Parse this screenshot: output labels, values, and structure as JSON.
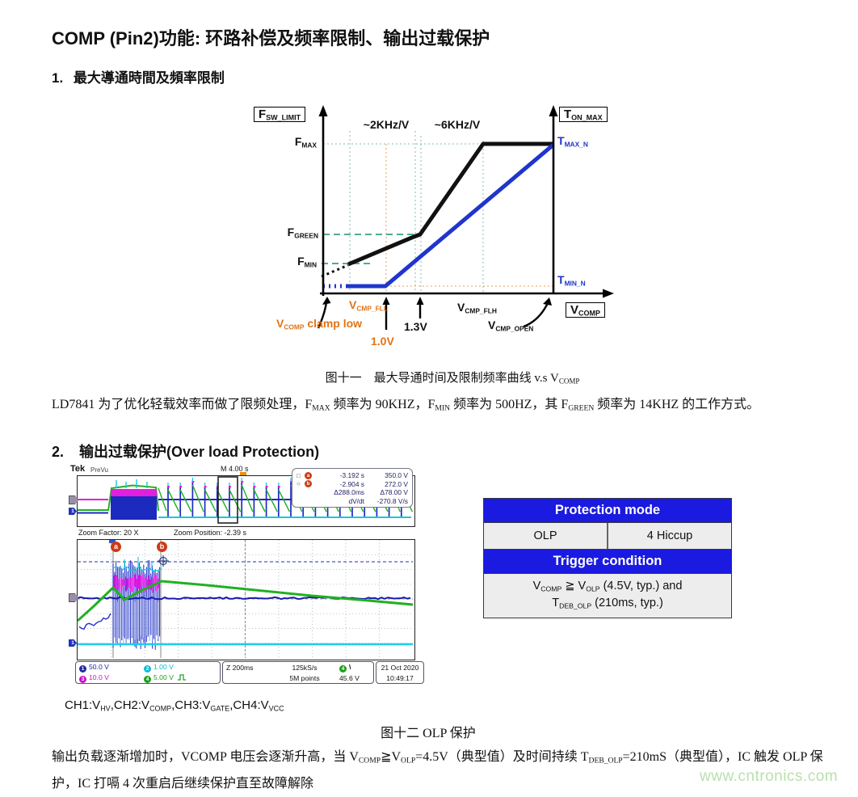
{
  "colors": {
    "accent_blue": "#1f35cc",
    "accent_orange": "#e07415",
    "teal": "#3a9f86",
    "table_blue": "#1a1ae0",
    "ch1": "#222a9c",
    "ch2": "#11b8d4",
    "ch3": "#cc10cc",
    "ch4": "#1da01d",
    "cursor_badge": "#cc3b16",
    "watermark": "#b9e0ad"
  },
  "page": {
    "title": "COMP (Pin2)功能: 环路补偿及频率限制、输出过载保护",
    "watermark": "www.cntronics.com"
  },
  "section1": {
    "num": "1.",
    "heading": "最大導通時間及頻率限制",
    "caption": [
      {
        "t": "图十一　最大导通时间及限制频率曲线 v.s V"
      },
      {
        "s": "COMP"
      }
    ],
    "body": [
      {
        "t": "LD7841 为了优化轻载效率而做了限频处理，F"
      },
      {
        "s": "MAX"
      },
      {
        "t": " 频率为 90KHZ，F"
      },
      {
        "s": "MIN"
      },
      {
        "t": " 频率为 500HZ，其 F"
      },
      {
        "s": "GREEN"
      },
      {
        "t": " 频率为 14KHZ 的工作方式。"
      }
    ]
  },
  "chart": {
    "fsw_limit": [
      {
        "t": "F"
      },
      {
        "s": "SW_LIMIT"
      }
    ],
    "ton_max": [
      {
        "t": "T"
      },
      {
        "s": "ON_MAX"
      }
    ],
    "fmax": [
      {
        "t": "F"
      },
      {
        "s": "MAX"
      }
    ],
    "fgreen": [
      {
        "t": "F"
      },
      {
        "s": "GREEN"
      }
    ],
    "fmin": [
      {
        "t": "F"
      },
      {
        "s": "MIN"
      }
    ],
    "tmax_n": [
      {
        "t": "T"
      },
      {
        "s": "MAX_N"
      }
    ],
    "tmin_n": [
      {
        "t": "T"
      },
      {
        "s": "MIN_N"
      }
    ],
    "slope_left": "~2KHz/V",
    "slope_right": "~6KHz/V",
    "vcmp_fll": [
      {
        "t": "V"
      },
      {
        "s": "CMP_FLL"
      }
    ],
    "vcmp_flh": [
      {
        "t": "V"
      },
      {
        "s": "CMP_FLH"
      }
    ],
    "vcmp_open": [
      {
        "t": "V"
      },
      {
        "s": "CMP_OPEN"
      }
    ],
    "vcomp_axis": [
      {
        "t": "V"
      },
      {
        "s": "COMP"
      }
    ],
    "clamp_low": [
      {
        "t": "V"
      },
      {
        "s": "COMP"
      },
      {
        "t": " clamp low"
      }
    ],
    "v_1_0": "1.0V",
    "v_1_3": "1.3V"
  },
  "section2": {
    "num": "2.",
    "heading": "输出过载保护(Over load Protection)",
    "ch_caption": [
      {
        "t": "CH1:V"
      },
      {
        "s": "HV"
      },
      {
        "t": ",CH2:V"
      },
      {
        "s": "COMP"
      },
      {
        "t": ",CH3:V"
      },
      {
        "s": "GATE"
      },
      {
        "t": ",CH4:V"
      },
      {
        "s": "VCC"
      }
    ],
    "fig_caption": "图十二 OLP 保护",
    "body": [
      {
        "t": "输出负载逐渐增加时，VCOMP 电压会逐渐升高，当 V"
      },
      {
        "s": "COMP"
      },
      {
        "t": "≧V"
      },
      {
        "s": "OLP"
      },
      {
        "t": "=4.5V（典型值）及时间持续 T"
      },
      {
        "s": "DEB_OLP"
      },
      {
        "t": "=210mS（典型值），IC 触发 OLP 保护，IC 打嗝 4 次重启后继续保护直至故障解除"
      }
    ]
  },
  "scope": {
    "brand": "Tek",
    "mode": "PreVu",
    "timebase": "M 4.00 s",
    "zoom_factor": "Zoom Factor: 20 X",
    "zoom_position": "Zoom Position: -2.39 s",
    "cursor_a": "a",
    "cursor_b": "b",
    "readout": {
      "a_time": "-3.192 s",
      "a_volt": "350.0 V",
      "b_time": "-2.904 s",
      "b_volt": "272.0 V",
      "delta_time": "Δ288.0ms",
      "delta_volt": "Δ78.00 V",
      "dvdt_label": "dV/dt",
      "dvdt_value": "-270.8 V/s"
    },
    "ch1": {
      "n": "1",
      "scale": "50.0 V"
    },
    "ch2": {
      "n": "2",
      "scale": "1.00 V"
    },
    "ch3": {
      "n": "3",
      "scale": "10.0 V"
    },
    "ch4": {
      "n": "4",
      "scale": "5.00 V"
    },
    "horiz": {
      "zoom_scale": "Z 200ms",
      "sample_rate": "125kS/s",
      "record_length": "5M points"
    },
    "trigger": {
      "ch": "4",
      "slope": "\\",
      "level": "45.6 V"
    },
    "date": "21 Oct 2020",
    "time": "10:49:17"
  },
  "table": {
    "protection_header": "Protection mode",
    "olp": "OLP",
    "hiccup": "4 Hiccup",
    "trigger_header": "Trigger condition",
    "condition_line1": [
      {
        "t": "V"
      },
      {
        "s": "COMP"
      },
      {
        "t": " ≧ V"
      },
      {
        "s": "OLP"
      },
      {
        "t": " (4.5V, typ.) and"
      }
    ],
    "condition_line2": [
      {
        "t": "T"
      },
      {
        "s": "DEB_OLP"
      },
      {
        "t": " (210ms, typ.)"
      }
    ]
  }
}
